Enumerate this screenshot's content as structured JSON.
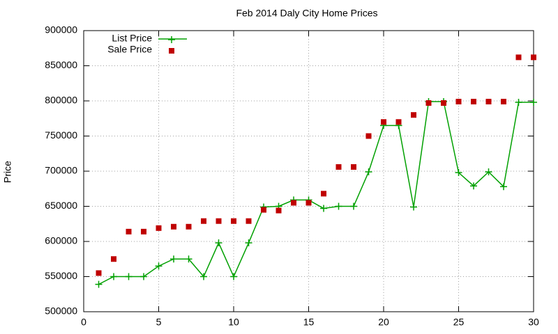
{
  "chart_data": {
    "type": "line",
    "title": "Feb 2014 Daly City Home Prices",
    "y_label": "Price",
    "x": [
      1,
      2,
      3,
      4,
      5,
      6,
      7,
      8,
      9,
      10,
      11,
      12,
      13,
      14,
      15,
      16,
      17,
      18,
      19,
      20,
      21,
      22,
      23,
      24,
      25,
      26,
      27,
      28,
      29,
      30
    ],
    "series": [
      {
        "name": "List Price",
        "color": "#00a000",
        "style": "linespoints",
        "values": [
          539000,
          550000,
          550000,
          550000,
          565000,
          575000,
          575000,
          550000,
          598000,
          550000,
          598000,
          649000,
          650000,
          659000,
          659000,
          647000,
          650000,
          650000,
          699000,
          765000,
          765000,
          649000,
          799000,
          799000,
          698000,
          679000,
          699000,
          678000,
          798000,
          798000
        ]
      },
      {
        "name": "Sale Price",
        "color": "#c00000",
        "style": "points",
        "values": [
          555000,
          575000,
          614000,
          614000,
          619000,
          621000,
          621000,
          629000,
          629000,
          629000,
          629000,
          645000,
          644000,
          655000,
          655000,
          668000,
          706000,
          706000,
          750000,
          770000,
          770000,
          780000,
          797000,
          797000,
          799000,
          799000,
          799000,
          799000,
          862000,
          862000
        ]
      }
    ],
    "xlim": [
      0,
      30
    ],
    "xticks": [
      0,
      5,
      10,
      15,
      20,
      25,
      30
    ],
    "ylim": [
      500000,
      900000
    ],
    "yticks": [
      500000,
      550000,
      600000,
      650000,
      700000,
      750000,
      800000,
      850000,
      900000
    ],
    "grid": true,
    "legend": "top-left"
  }
}
